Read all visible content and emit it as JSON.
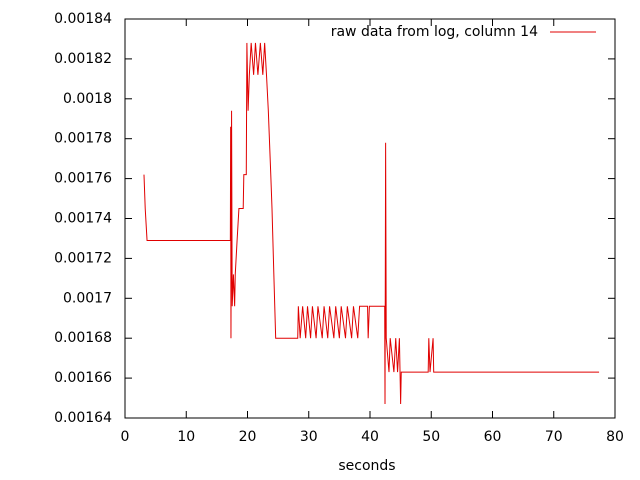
{
  "chart_data": {
    "type": "line",
    "x_label": "seconds",
    "legend": "upper right",
    "xlim": [
      0,
      80
    ],
    "xticks": [
      0,
      10,
      20,
      30,
      40,
      50,
      60,
      70,
      80
    ],
    "ylim": [
      0.00164,
      0.00184
    ],
    "yticks": [
      0.00164,
      0.00166,
      0.00168,
      0.0017,
      0.00172,
      0.00174,
      0.00176,
      0.00178,
      0.0018,
      0.00182,
      0.00184
    ],
    "grid": false,
    "series": [
      {
        "name": "raw data from log, column 14",
        "color": "#e00000",
        "x": [
          3.1,
          3.3,
          3.6,
          17.2,
          17.25,
          17.3,
          17.4,
          17.5,
          17.7,
          17.9,
          18.0,
          18.3,
          18.6,
          19.3,
          19.4,
          19.8,
          19.9,
          20.1,
          20.3,
          20.6,
          21.0,
          21.3,
          21.7,
          22.1,
          22.5,
          22.8,
          23.1,
          23.4,
          23.8,
          24.0,
          24.3,
          24.6,
          28.2,
          28.3,
          28.6,
          29.0,
          29.5,
          29.8,
          30.3,
          30.6,
          31.2,
          31.5,
          32.2,
          32.5,
          33.1,
          33.4,
          34.1,
          34.4,
          35.0,
          35.3,
          36.0,
          36.3,
          37.0,
          37.3,
          38.0,
          38.3,
          39.6,
          39.7,
          39.9,
          42.4,
          42.45,
          42.55,
          42.65,
          43.1,
          43.3,
          43.9,
          44.2,
          44.5,
          44.8,
          45.0,
          45.1,
          49.5,
          49.6,
          49.8,
          50.3,
          50.4,
          77.4
        ],
        "values": [
          0.001762,
          0.001745,
          0.001729,
          0.001729,
          0.001786,
          0.00168,
          0.001794,
          0.001696,
          0.001712,
          0.001696,
          0.001712,
          0.001729,
          0.001745,
          0.001745,
          0.001762,
          0.001762,
          0.001828,
          0.001794,
          0.001812,
          0.001828,
          0.001812,
          0.001828,
          0.001812,
          0.001828,
          0.001812,
          0.001828,
          0.001812,
          0.001794,
          0.001762,
          0.001745,
          0.001712,
          0.00168,
          0.00168,
          0.001696,
          0.00168,
          0.001696,
          0.00168,
          0.001696,
          0.00168,
          0.001696,
          0.00168,
          0.001696,
          0.00168,
          0.001696,
          0.00168,
          0.001696,
          0.00168,
          0.001696,
          0.00168,
          0.001696,
          0.00168,
          0.001696,
          0.00168,
          0.001696,
          0.00168,
          0.001696,
          0.001696,
          0.00168,
          0.001696,
          0.001696,
          0.001647,
          0.001778,
          0.00168,
          0.001663,
          0.00168,
          0.001663,
          0.00168,
          0.001663,
          0.00168,
          0.001647,
          0.001663,
          0.001663,
          0.00168,
          0.001663,
          0.00168,
          0.001663,
          0.001663
        ]
      }
    ]
  }
}
